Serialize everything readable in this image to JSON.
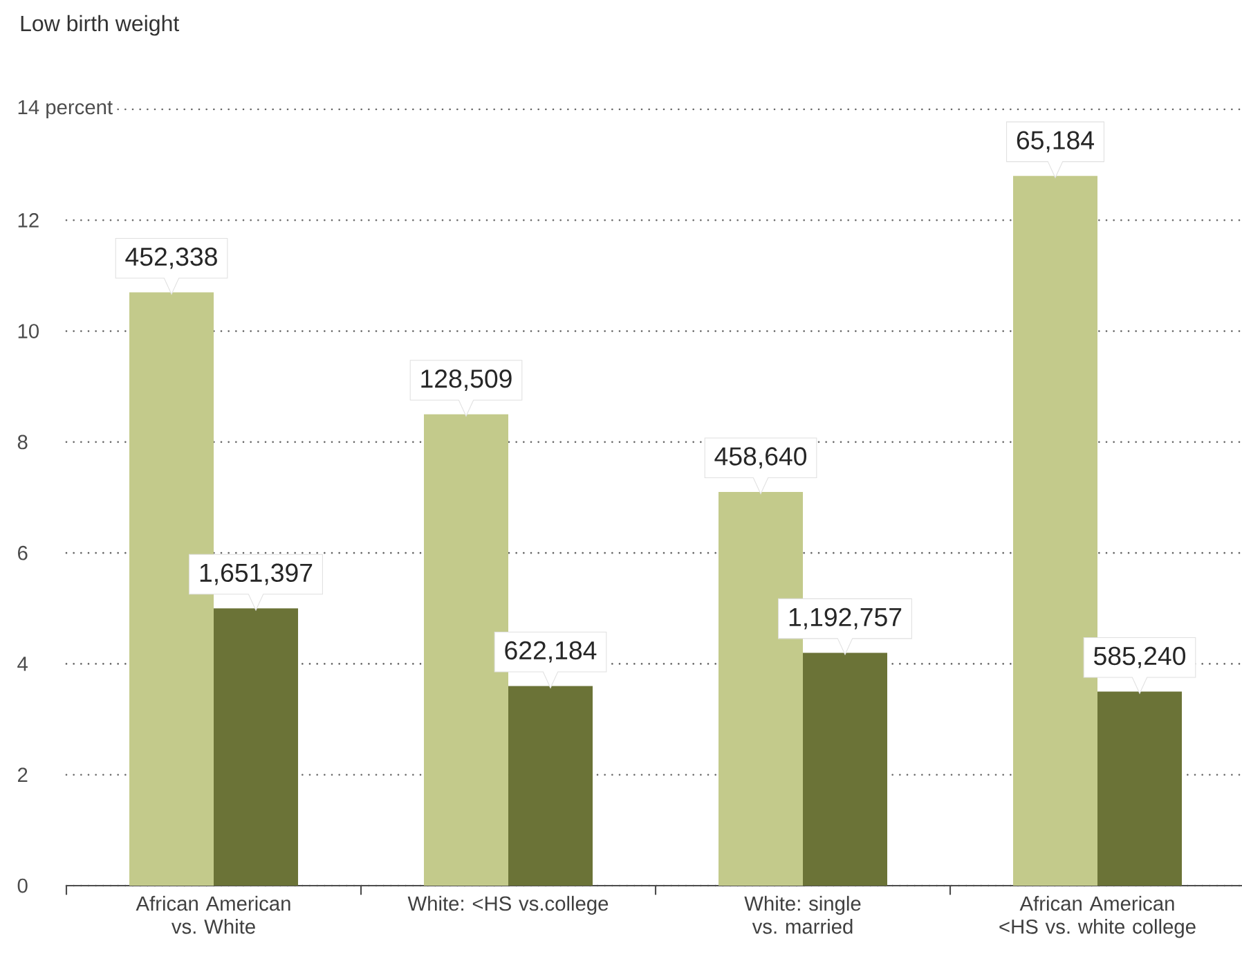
{
  "chart_data": {
    "type": "bar",
    "title": "Low birth weight",
    "categories": [
      "African American vs. White",
      "White: <HS vs.college",
      "White: single vs. married",
      "African American <HS vs. white college"
    ],
    "series": [
      {
        "color": "#c3ca8b",
        "values": [
          10.7,
          8.5,
          7.1,
          12.8
        ]
      },
      {
        "color": "#6b7337",
        "values": [
          5.0,
          3.6,
          4.2,
          3.5
        ]
      }
    ],
    "annotations": [
      {
        "text": "452,338",
        "x": "African American vs. White",
        "y": 10.7
      },
      {
        "text": "1,651,397",
        "x": "African American vs. White",
        "y": 5.0
      },
      {
        "text": "128,509",
        "x": "White: <HS vs.college",
        "y": 8.5
      },
      {
        "text": "622,184",
        "x": "White: <HS vs.college",
        "y": 3.6
      },
      {
        "text": "458,640",
        "x": "White: single vs. married",
        "y": 7.1
      },
      {
        "text": "1,192,757",
        "x": "White: single vs. married",
        "y": 4.2
      },
      {
        "text": "65,184",
        "x": "African American <HS vs. white college",
        "y": 12.8
      },
      {
        "text": "585,240",
        "x": "African American <HS vs. white college",
        "y": 3.5
      }
    ],
    "ylim": [
      0,
      14
    ],
    "yticks": [
      0,
      2,
      4,
      6,
      8,
      10,
      12,
      {
        "value": 14,
        "label": "14 percent"
      }
    ],
    "grid": "y"
  }
}
